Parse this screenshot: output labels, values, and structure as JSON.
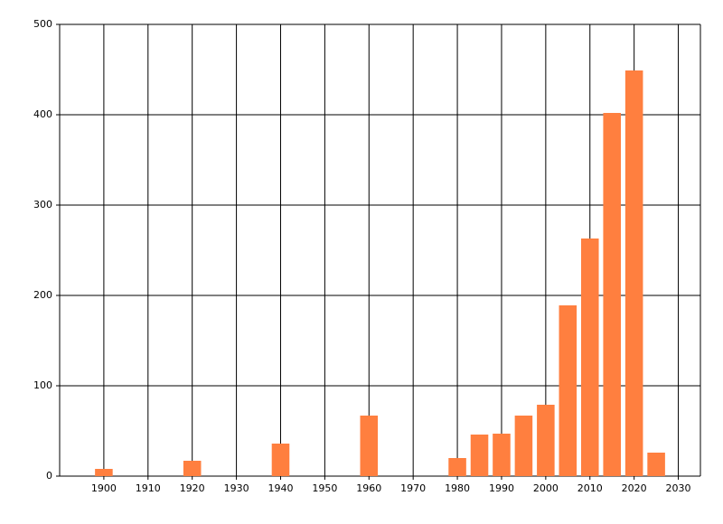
{
  "chart_data": {
    "type": "bar",
    "x": [
      1900,
      1920,
      1940,
      1960,
      1980,
      1985,
      1990,
      1995,
      2000,
      2005,
      2010,
      2015,
      2020,
      2025
    ],
    "values": [
      8,
      17,
      36,
      67,
      20,
      46,
      47,
      67,
      79,
      189,
      263,
      402,
      449,
      26
    ],
    "color": "#ff7f3f",
    "xlim": [
      1890,
      2035
    ],
    "xticks": [
      1900,
      1910,
      1920,
      1930,
      1940,
      1950,
      1960,
      1970,
      1980,
      1990,
      2000,
      2010,
      2020,
      2030
    ],
    "ylim": [
      0,
      500
    ],
    "yticks": [
      0,
      100,
      200,
      300,
      400,
      500
    ],
    "grid": true
  }
}
